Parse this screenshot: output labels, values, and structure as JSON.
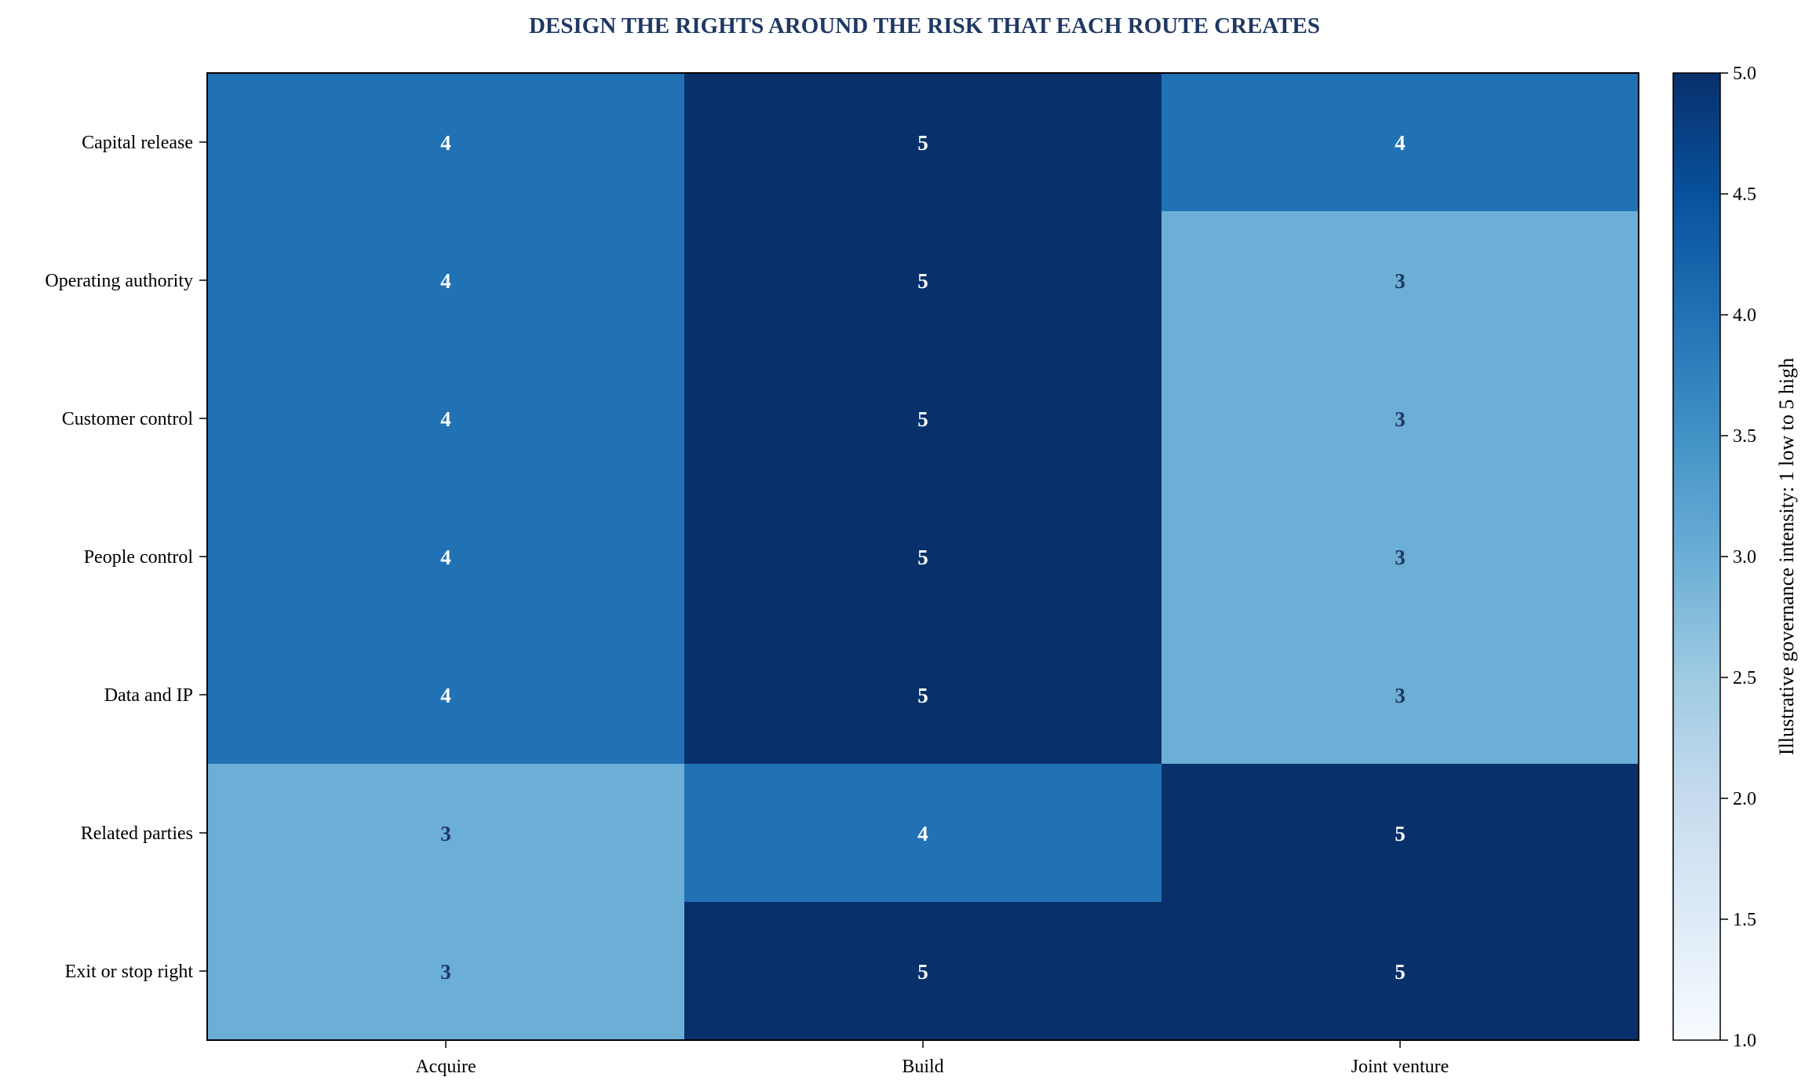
{
  "chart_data": {
    "type": "heatmap",
    "title": "DESIGN THE RIGHTS AROUND THE RISK THAT EACH ROUTE CREATES",
    "columns": [
      "Acquire",
      "Build",
      "Joint venture"
    ],
    "rows": [
      "Capital release",
      "Operating authority",
      "Customer control",
      "People control",
      "Data and IP",
      "Related parties",
      "Exit or stop right"
    ],
    "values": [
      [
        4,
        5,
        4
      ],
      [
        4,
        5,
        3
      ],
      [
        4,
        5,
        3
      ],
      [
        4,
        5,
        3
      ],
      [
        4,
        5,
        3
      ],
      [
        3,
        4,
        5
      ],
      [
        3,
        5,
        5
      ]
    ],
    "colorbar": {
      "label": "Illustrative governance intensity: 1 low to 5 high",
      "range": [
        1,
        5
      ],
      "ticks": [
        "1.0",
        "1.5",
        "2.0",
        "2.5",
        "3.0",
        "3.5",
        "4.0",
        "4.5",
        "5.0"
      ],
      "colormap": "Blues"
    },
    "colors": {
      "title": "#1f3864",
      "label_on_dark": "#ffffff",
      "label_on_light": "#1f3864"
    },
    "grid": false
  }
}
